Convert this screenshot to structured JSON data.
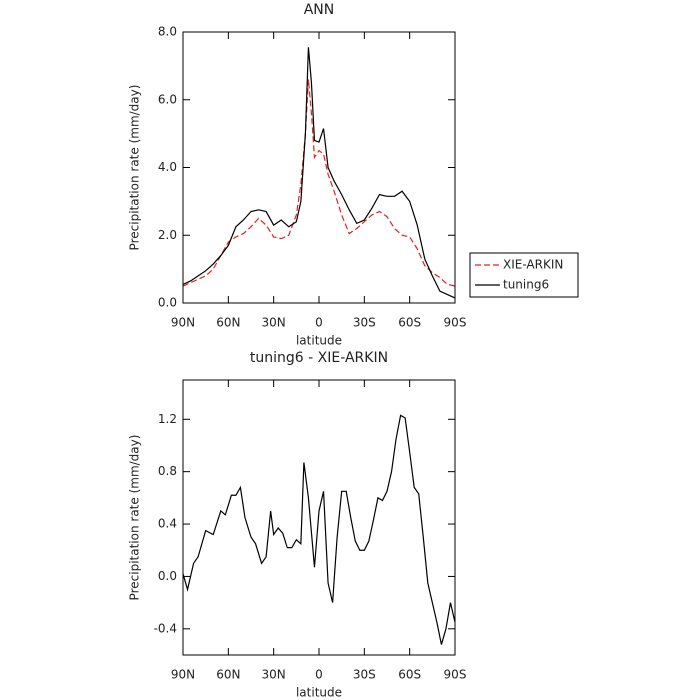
{
  "chart_data": [
    {
      "type": "line",
      "title": "ANN",
      "xlabel": "latitude",
      "ylabel": "Precipitation rate (mm/day)",
      "x": [
        90,
        85,
        80,
        75,
        70,
        65,
        60,
        55,
        50,
        45,
        40,
        35,
        30,
        25,
        20,
        15,
        12,
        9,
        7,
        5,
        3,
        0,
        -3,
        -6,
        -10,
        -15,
        -20,
        -25,
        -30,
        -35,
        -40,
        -45,
        -50,
        -55,
        -60,
        -65,
        -70,
        -75,
        -80,
        -85,
        -90
      ],
      "series": [
        {
          "name": "XIE-ARKIN",
          "color": "#e8201e",
          "dash": true,
          "values": [
            0.5,
            0.6,
            0.7,
            0.8,
            1.0,
            1.4,
            1.8,
            1.95,
            2.05,
            2.25,
            2.5,
            2.3,
            1.95,
            1.9,
            2.0,
            2.6,
            3.5,
            5.0,
            6.6,
            5.6,
            4.3,
            4.5,
            4.4,
            3.8,
            3.3,
            2.6,
            2.05,
            2.2,
            2.4,
            2.6,
            2.7,
            2.55,
            2.2,
            2.0,
            1.95,
            1.6,
            1.1,
            0.9,
            0.75,
            0.55,
            0.5
          ]
        },
        {
          "name": "tuning6",
          "color": "#000000",
          "dash": false,
          "values": [
            0.55,
            0.65,
            0.8,
            0.95,
            1.15,
            1.4,
            1.7,
            2.25,
            2.45,
            2.7,
            2.75,
            2.7,
            2.3,
            2.45,
            2.25,
            2.4,
            3.0,
            5.0,
            7.55,
            6.5,
            4.8,
            4.75,
            5.15,
            4.0,
            3.6,
            3.2,
            2.75,
            2.35,
            2.45,
            2.8,
            3.2,
            3.15,
            3.15,
            3.3,
            3.0,
            2.3,
            1.3,
            0.8,
            0.35,
            0.25,
            0.15
          ]
        }
      ],
      "xlim": [
        90,
        -90
      ],
      "xticks": [
        {
          "value": 90,
          "label": "90N"
        },
        {
          "value": 60,
          "label": "60N"
        },
        {
          "value": 30,
          "label": "30N"
        },
        0,
        {
          "value": -30,
          "label": "30S"
        },
        {
          "value": -60,
          "label": "60S"
        },
        {
          "value": -90,
          "label": "90S"
        }
      ],
      "ylim": [
        0,
        8
      ],
      "yticks": [
        {
          "value": 0,
          "label": "0.0"
        },
        {
          "value": 2,
          "label": "2.0"
        },
        {
          "value": 4,
          "label": "4.0"
        },
        {
          "value": 6,
          "label": "6.0"
        },
        {
          "value": 8,
          "label": "8.0"
        }
      ],
      "legend": "right"
    },
    {
      "type": "line",
      "title": "tuning6 - XIE-ARKIN",
      "xlabel": "latitude",
      "ylabel": "Precipitation rate (mm/day)",
      "x": [
        90,
        87,
        83,
        80,
        75,
        70,
        65,
        62,
        58,
        55,
        52,
        49,
        45,
        42,
        38,
        35,
        32,
        30,
        27,
        24,
        21,
        18,
        15,
        12,
        10,
        7,
        3,
        0,
        -3,
        -6,
        -9,
        -12,
        -15,
        -18,
        -21,
        -24,
        -27,
        -30,
        -33,
        -36,
        -39,
        -42,
        -45,
        -48,
        -51,
        -54,
        -57,
        -60,
        -63,
        -66,
        -69,
        -72,
        -75,
        -78,
        -81,
        -84,
        -87,
        -90
      ],
      "values": [
        0.02,
        -0.1,
        0.1,
        0.15,
        0.35,
        0.32,
        0.5,
        0.47,
        0.62,
        0.62,
        0.68,
        0.45,
        0.3,
        0.25,
        0.1,
        0.15,
        0.5,
        0.32,
        0.37,
        0.33,
        0.22,
        0.22,
        0.28,
        0.25,
        0.87,
        0.6,
        0.07,
        0.5,
        0.65,
        -0.05,
        -0.2,
        0.3,
        0.65,
        0.65,
        0.45,
        0.27,
        0.2,
        0.2,
        0.27,
        0.43,
        0.6,
        0.58,
        0.65,
        0.8,
        1.05,
        1.23,
        1.21,
        0.95,
        0.68,
        0.63,
        0.3,
        -0.05,
        -0.2,
        -0.35,
        -0.52,
        -0.4,
        -0.2,
        -0.35
      ],
      "color": "#000000",
      "xlim": [
        90,
        -90
      ],
      "xticks": [
        {
          "value": 90,
          "label": "90N"
        },
        {
          "value": 60,
          "label": "60N"
        },
        {
          "value": 30,
          "label": "30N"
        },
        0,
        {
          "value": -30,
          "label": "30S"
        },
        {
          "value": -60,
          "label": "60S"
        },
        {
          "value": -90,
          "label": "90S"
        }
      ],
      "ylim": [
        -0.6,
        1.5
      ],
      "yticks": [
        -0.4,
        {
          "value": 0,
          "label": "0.0"
        },
        0.4,
        0.8,
        1.2
      ]
    }
  ]
}
